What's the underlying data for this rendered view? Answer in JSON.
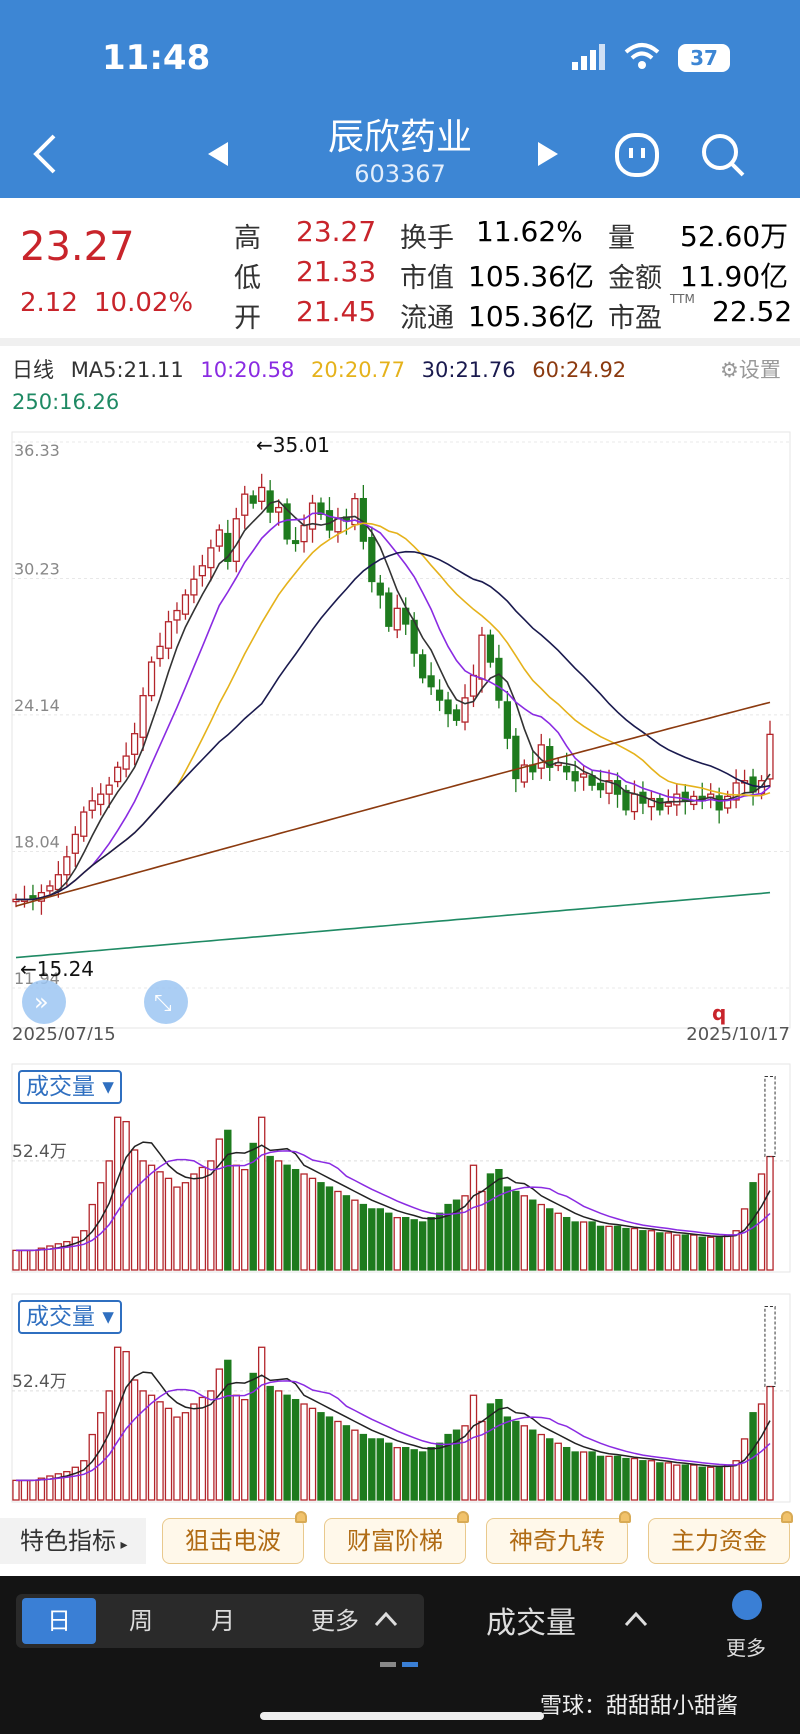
{
  "status_bar": {
    "time": "11:48",
    "battery": "37"
  },
  "header": {
    "title": "辰欣药业",
    "code": "603367"
  },
  "quote": {
    "price": "23.27",
    "change": "2.12",
    "change_pct": "10.02%",
    "fields": [
      {
        "label": "高",
        "value": "23.27"
      },
      {
        "label": "低",
        "value": "21.33"
      },
      {
        "label": "开",
        "value": "21.45"
      },
      {
        "label": "换手",
        "value": "11.62%"
      },
      {
        "label": "市值",
        "value": "105.36亿"
      },
      {
        "label": "流通",
        "value": "105.36亿"
      },
      {
        "label": "量",
        "value": "52.60万"
      },
      {
        "label": "金额",
        "value": "11.90亿"
      },
      {
        "label": "市盈",
        "sup": "TTM",
        "value": "22.52"
      }
    ]
  },
  "chart_header": {
    "period": "日线",
    "ma": [
      {
        "text": "MA5:21.11",
        "color": "#333333"
      },
      {
        "text": "10:20.58",
        "color": "#8a2be2"
      },
      {
        "text": "20:20.77",
        "color": "#e5b21b"
      },
      {
        "text": "30:21.76",
        "color": "#1a1a4e"
      },
      {
        "text": "60:24.92",
        "color": "#8b3a0f"
      },
      {
        "text": "250:16.26",
        "color": "#1f8a64"
      }
    ],
    "settings_label": "设置"
  },
  "chart_data": {
    "type": "candlestick",
    "y_ticks": [
      "36.33",
      "30.23",
      "24.14",
      "18.04",
      "11.94"
    ],
    "ylim": [
      11.94,
      36.33
    ],
    "x_start": "2025/07/15",
    "x_end": "2025/10/17",
    "max_annotation": "←35.01",
    "min_annotation": "←15.24",
    "marker": "q",
    "colors": {
      "up": "#b3252b",
      "down": "#1e7b1e"
    },
    "closes": [
      15.9,
      15.9,
      15.9,
      16.2,
      16.5,
      17.0,
      17.8,
      18.8,
      19.8,
      20.3,
      20.6,
      21.0,
      21.8,
      22.3,
      23.3,
      25.0,
      26.5,
      27.2,
      28.3,
      28.8,
      29.5,
      30.2,
      30.8,
      31.6,
      32.4,
      31.0,
      32.9,
      34.0,
      33.6,
      34.3,
      33.2,
      33.4,
      32.0,
      31.8,
      32.6,
      33.6,
      33.1,
      32.4,
      32.9,
      32.8,
      33.8,
      31.9,
      30.1,
      29.5,
      28.1,
      28.9,
      28.2,
      26.9,
      25.8,
      25.4,
      24.8,
      24.2,
      23.9,
      24.9,
      25.9,
      27.7,
      26.5,
      24.8,
      23.1,
      21.3,
      21.9,
      21.6,
      22.8,
      21.8,
      22.0,
      21.6,
      21.2,
      21.5,
      21.0,
      20.8,
      21.2,
      20.6,
      19.9,
      20.6,
      20.2,
      20.4,
      19.9,
      20.2,
      20.6,
      20.3,
      20.5,
      20.3,
      20.6,
      19.9,
      20.5,
      21.1,
      21.2,
      20.7,
      21.2,
      23.27
    ]
  },
  "volume_panels": [
    {
      "title": "成交量",
      "axis_label": "52.4万"
    },
    {
      "title": "成交量",
      "axis_label": "52.4万"
    }
  ],
  "volume_data": {
    "values": [
      9,
      9,
      9,
      10,
      11,
      12,
      13,
      15,
      18,
      30,
      40,
      50,
      70,
      68,
      55,
      50,
      48,
      45,
      42,
      38,
      40,
      44,
      47,
      50,
      60,
      64,
      48,
      46,
      58,
      70,
      52,
      50,
      48,
      46,
      44,
      42,
      40,
      38,
      36,
      34,
      32,
      30,
      28,
      28,
      26,
      24,
      24,
      23,
      22,
      24,
      26,
      30,
      32,
      34,
      48,
      36,
      44,
      46,
      38,
      36,
      34,
      32,
      30,
      28,
      26,
      24,
      22,
      22,
      22,
      20,
      20,
      20,
      19,
      19,
      18,
      18,
      17,
      17,
      16,
      16,
      16,
      15,
      15,
      15,
      16,
      18,
      28,
      40,
      44,
      52
    ]
  },
  "feature_row": {
    "label": "特色指标",
    "tags": [
      "狙击电波",
      "财富阶梯",
      "神奇九转",
      "主力资金"
    ]
  },
  "bottom_bar": {
    "periods": [
      "日",
      "周",
      "月",
      "更多"
    ],
    "indicator": "成交量",
    "more": "更多",
    "watermark": "雪球：甜甜甜小甜酱"
  }
}
